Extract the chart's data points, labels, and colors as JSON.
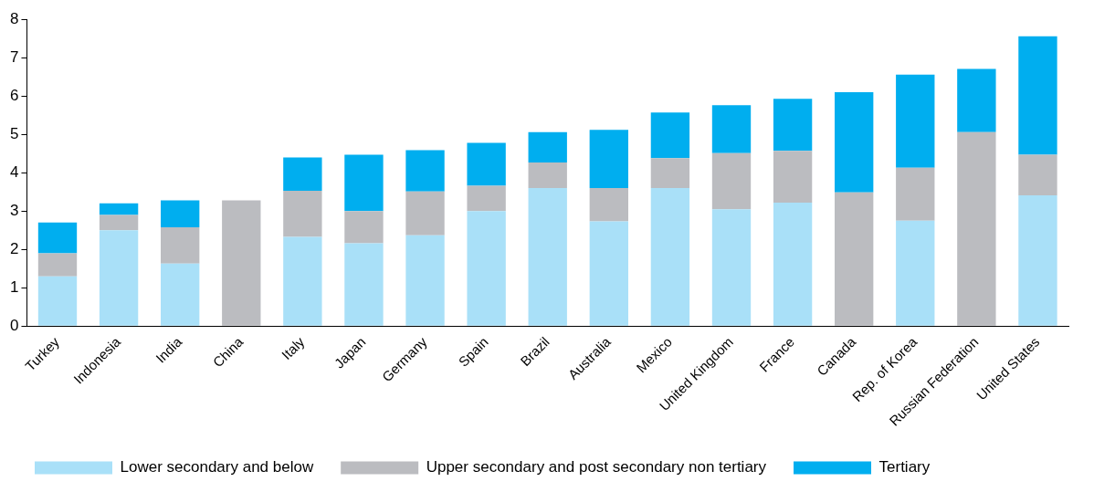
{
  "chart_data": {
    "type": "bar",
    "stacked": true,
    "categories": [
      "Turkey",
      "Indonesia",
      "India",
      "China",
      "Italy",
      "Japan",
      "Germany",
      "Spain",
      "Brazil",
      "Australia",
      "Mexico",
      "United Kingdom",
      "France",
      "Canada",
      "Rep. of Korea",
      "Russian Federation",
      "United States"
    ],
    "series": [
      {
        "name": "Lower secondary and below",
        "color": "#a9e0f8",
        "values": [
          1.3,
          2.5,
          1.63,
          0,
          2.33,
          2.16,
          2.37,
          3.0,
          3.6,
          2.73,
          3.6,
          3.05,
          3.22,
          0,
          2.75,
          0,
          3.41
        ]
      },
      {
        "name": "Upper secondary and post secondary non tertiary",
        "color": "#bbbcc0",
        "values": [
          0.6,
          0.4,
          0.95,
          3.28,
          1.2,
          0.84,
          1.14,
          0.66,
          0.67,
          0.87,
          0.78,
          1.46,
          1.35,
          3.49,
          1.38,
          5.06,
          1.06
        ]
      },
      {
        "name": "Tertiary",
        "color": "#00aeef",
        "values": [
          0.8,
          0.3,
          0.7,
          0,
          0.87,
          1.47,
          1.08,
          1.12,
          0.79,
          1.52,
          1.19,
          1.25,
          1.36,
          2.61,
          2.43,
          1.65,
          3.09
        ]
      }
    ],
    "ylim": [
      0,
      8
    ],
    "yticks": [
      0,
      1,
      2,
      3,
      4,
      5,
      6,
      7,
      8
    ],
    "grid": false,
    "legend": "bottom"
  }
}
